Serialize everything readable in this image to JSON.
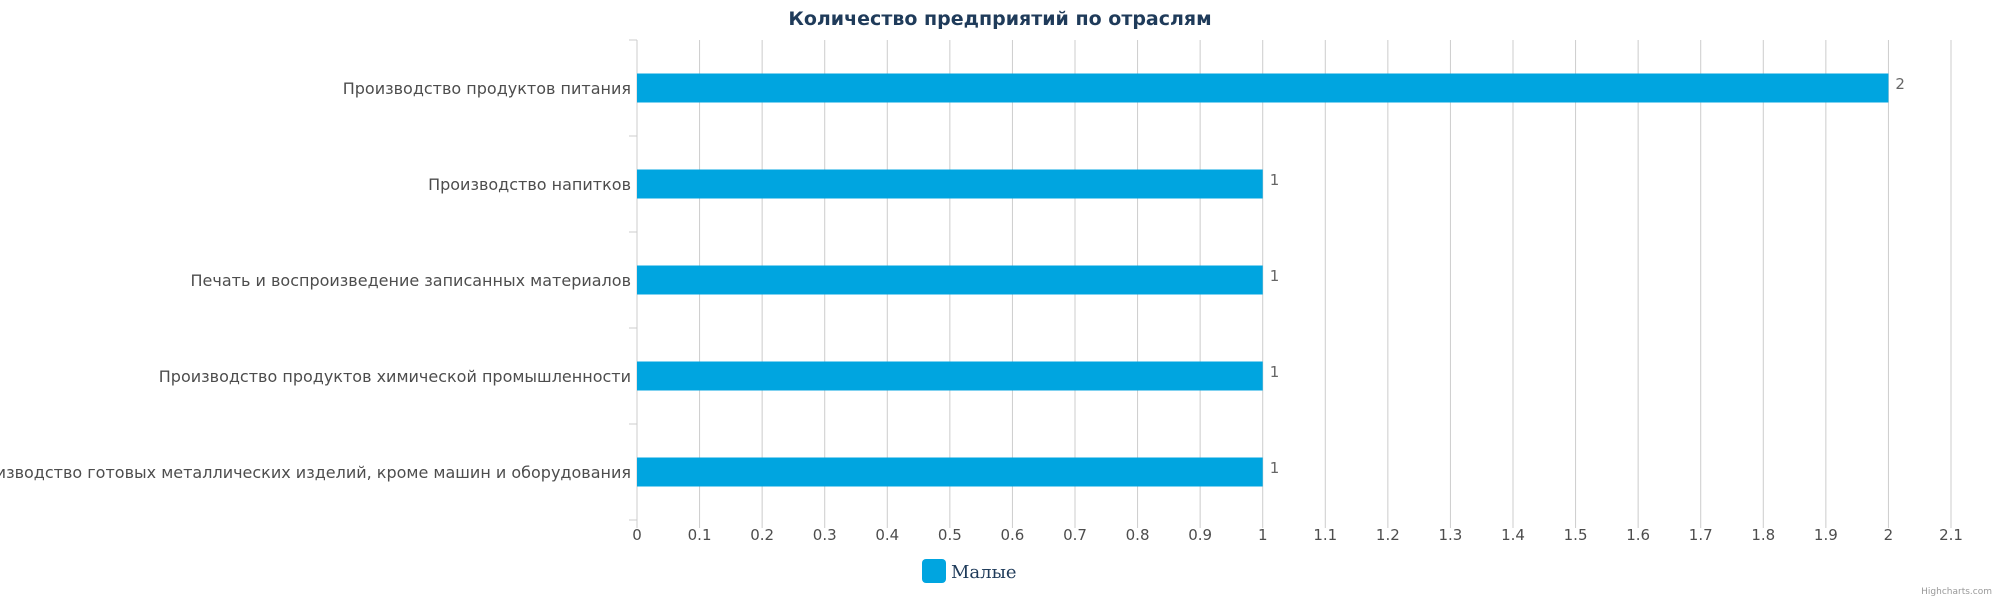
{
  "chart_data": {
    "type": "bar",
    "orientation": "horizontal",
    "title": "Количество предприятий по отраслям",
    "categories": [
      "Производство продуктов питания",
      "Производство напитков",
      "Печать и воспроизведение записанных материалов",
      "Производство продуктов химической промышленности",
      "Производство готовых металлических изделий, кроме машин и оборудования"
    ],
    "series": [
      {
        "name": "Малые",
        "color": "#00a5e0",
        "values": [
          2,
          1,
          1,
          1,
          1
        ]
      }
    ],
    "xlim": [
      0,
      2.1
    ],
    "ticks": [
      "0",
      "0.1",
      "0.2",
      "0.3",
      "0.4",
      "0.5",
      "0.6",
      "0.7",
      "0.8",
      "0.9",
      "1",
      "1.1",
      "1.2",
      "1.3",
      "1.4",
      "1.5",
      "1.6",
      "1.7",
      "1.8",
      "1.9",
      "2",
      "2.1"
    ],
    "grid": true,
    "data_labels": true,
    "legend_position": "bottom-center"
  },
  "credit": "Highcharts.com",
  "colors": {
    "bar": "#00a5e0",
    "grid": "#cccccc",
    "title": "#1f3b5a",
    "text": "#4d4d4d"
  }
}
